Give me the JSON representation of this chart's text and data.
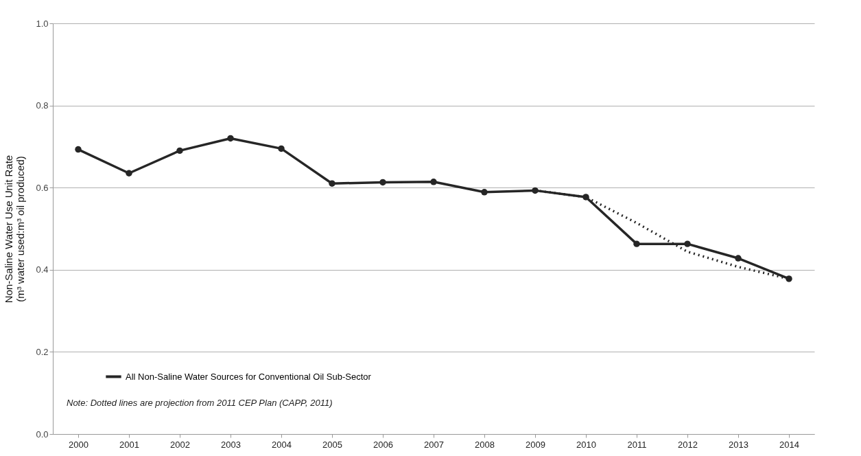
{
  "chart_data": {
    "type": "line",
    "ylabel": "Non-Saline Water Use Unit Rate\n(m³ water used:m³ oil produced)",
    "categories": [
      "2000",
      "2001",
      "2002",
      "2003",
      "2004",
      "2005",
      "2006",
      "2007",
      "2008",
      "2009",
      "2010",
      "2011",
      "2012",
      "2013",
      "2014"
    ],
    "series": [
      {
        "name": "All Non-Saline Water Sources for Conventional Oil Sub-Sector",
        "color": "#262626",
        "marker": "circle",
        "line_style": "solid",
        "values": [
          0.693,
          0.635,
          0.69,
          0.72,
          0.695,
          0.61,
          0.613,
          0.614,
          0.589,
          0.593,
          0.577,
          0.463,
          0.463,
          0.428,
          0.378
        ]
      },
      {
        "color": "#262626",
        "marker": "none",
        "line_style": "dotted",
        "values": [
          null,
          null,
          null,
          null,
          null,
          null,
          null,
          null,
          null,
          0.593,
          0.577,
          0.514,
          0.444,
          0.407,
          0.378
        ]
      }
    ],
    "ylim": [
      0,
      1
    ],
    "yticks": [
      {
        "value": 0,
        "label": "0.0"
      },
      {
        "value": 0.2,
        "label": "0.2"
      },
      {
        "value": 0.4,
        "label": "0.4"
      },
      {
        "value": 0.6,
        "label": "0.6"
      },
      {
        "value": 0.8,
        "label": "0.8"
      },
      {
        "value": 1,
        "label": "1.0"
      }
    ],
    "grid": "y",
    "legend": "bottom left",
    "annotations": [
      "Note: Dotted lines are projection  from  2011 CEP Plan (CAPP, 2011)"
    ]
  }
}
